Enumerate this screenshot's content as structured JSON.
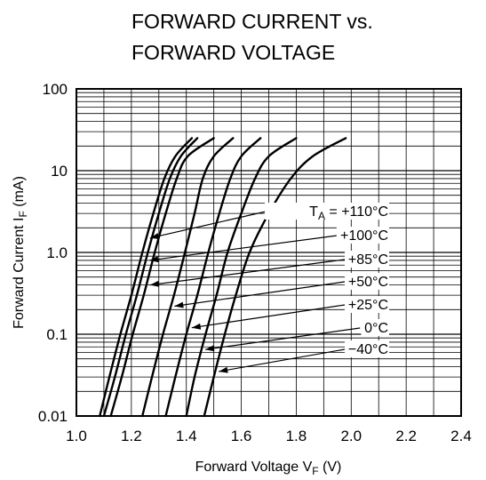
{
  "chart_data": {
    "type": "line",
    "title_lines": [
      "FORWARD CURRENT vs.",
      "FORWARD VOLTAGE"
    ],
    "xlabel": {
      "main": "Forward Voltage V",
      "sub": "F",
      "unit": " (V)"
    },
    "ylabel": {
      "main": "Forward Current I",
      "sub": "F",
      "unit": " (mA)"
    },
    "xlim": [
      1.0,
      2.4
    ],
    "ylim": [
      0.01,
      100
    ],
    "yscale": "log",
    "grid": true,
    "x_ticks": [
      "1.0",
      "1.2",
      "1.4",
      "1.6",
      "1.8",
      "2.0",
      "2.2",
      "2.4"
    ],
    "y_ticks": [
      "0.01",
      "0.1",
      "1.0",
      "10",
      "100"
    ],
    "series": [
      {
        "name": "T_A = +110°C",
        "x": [
          1.085,
          1.12,
          1.16,
          1.2,
          1.24,
          1.28,
          1.32,
          1.36,
          1.42
        ],
        "y": [
          0.01,
          0.03,
          0.1,
          0.3,
          1.0,
          3.0,
          8.0,
          15.0,
          25.0
        ]
      },
      {
        "name": "+100°C",
        "x": [
          1.1,
          1.14,
          1.18,
          1.22,
          1.26,
          1.3,
          1.34,
          1.38,
          1.44
        ],
        "y": [
          0.01,
          0.03,
          0.1,
          0.3,
          1.0,
          3.0,
          8.0,
          15.0,
          25.0
        ]
      },
      {
        "name": "+85°C",
        "x": [
          1.125,
          1.165,
          1.205,
          1.245,
          1.285,
          1.325,
          1.365,
          1.405,
          1.5
        ],
        "y": [
          0.01,
          0.03,
          0.1,
          0.3,
          1.0,
          3.0,
          8.0,
          15.0,
          25.0
        ]
      },
      {
        "name": "+50°C",
        "x": [
          1.24,
          1.275,
          1.315,
          1.355,
          1.395,
          1.43,
          1.46,
          1.5,
          1.57
        ],
        "y": [
          0.01,
          0.03,
          0.1,
          0.3,
          1.0,
          3.0,
          8.0,
          15.0,
          25.0
        ]
      },
      {
        "name": "+25°C",
        "x": [
          1.325,
          1.36,
          1.4,
          1.44,
          1.48,
          1.52,
          1.56,
          1.6,
          1.67
        ],
        "y": [
          0.01,
          0.03,
          0.1,
          0.3,
          1.0,
          3.0,
          8.0,
          15.0,
          25.0
        ]
      },
      {
        "name": "0°C",
        "x": [
          1.4,
          1.43,
          1.47,
          1.51,
          1.55,
          1.6,
          1.65,
          1.7,
          1.8
        ],
        "y": [
          0.01,
          0.03,
          0.1,
          0.3,
          1.0,
          3.0,
          8.0,
          15.0,
          25.0
        ]
      },
      {
        "name": "−40°C",
        "x": [
          1.465,
          1.5,
          1.54,
          1.58,
          1.63,
          1.7,
          1.78,
          1.86,
          1.98
        ],
        "y": [
          0.01,
          0.03,
          0.1,
          0.3,
          1.0,
          3.0,
          8.0,
          15.0,
          25.0
        ]
      }
    ],
    "annotations": [
      {
        "text": "T",
        "sub": "A",
        "text2": " = +110°C",
        "series": 0,
        "y": 1.5
      },
      {
        "text": "+100°C",
        "series": 1,
        "y": 0.8
      },
      {
        "text": "+85°C",
        "series": 2,
        "y": 0.4
      },
      {
        "text": "+50°C",
        "series": 3,
        "y": 0.22
      },
      {
        "text": "+25°C",
        "series": 4,
        "y": 0.12
      },
      {
        "text": "0°C",
        "series": 5,
        "y": 0.065
      },
      {
        "text": "−40°C",
        "series": 6,
        "y": 0.035
      }
    ]
  }
}
